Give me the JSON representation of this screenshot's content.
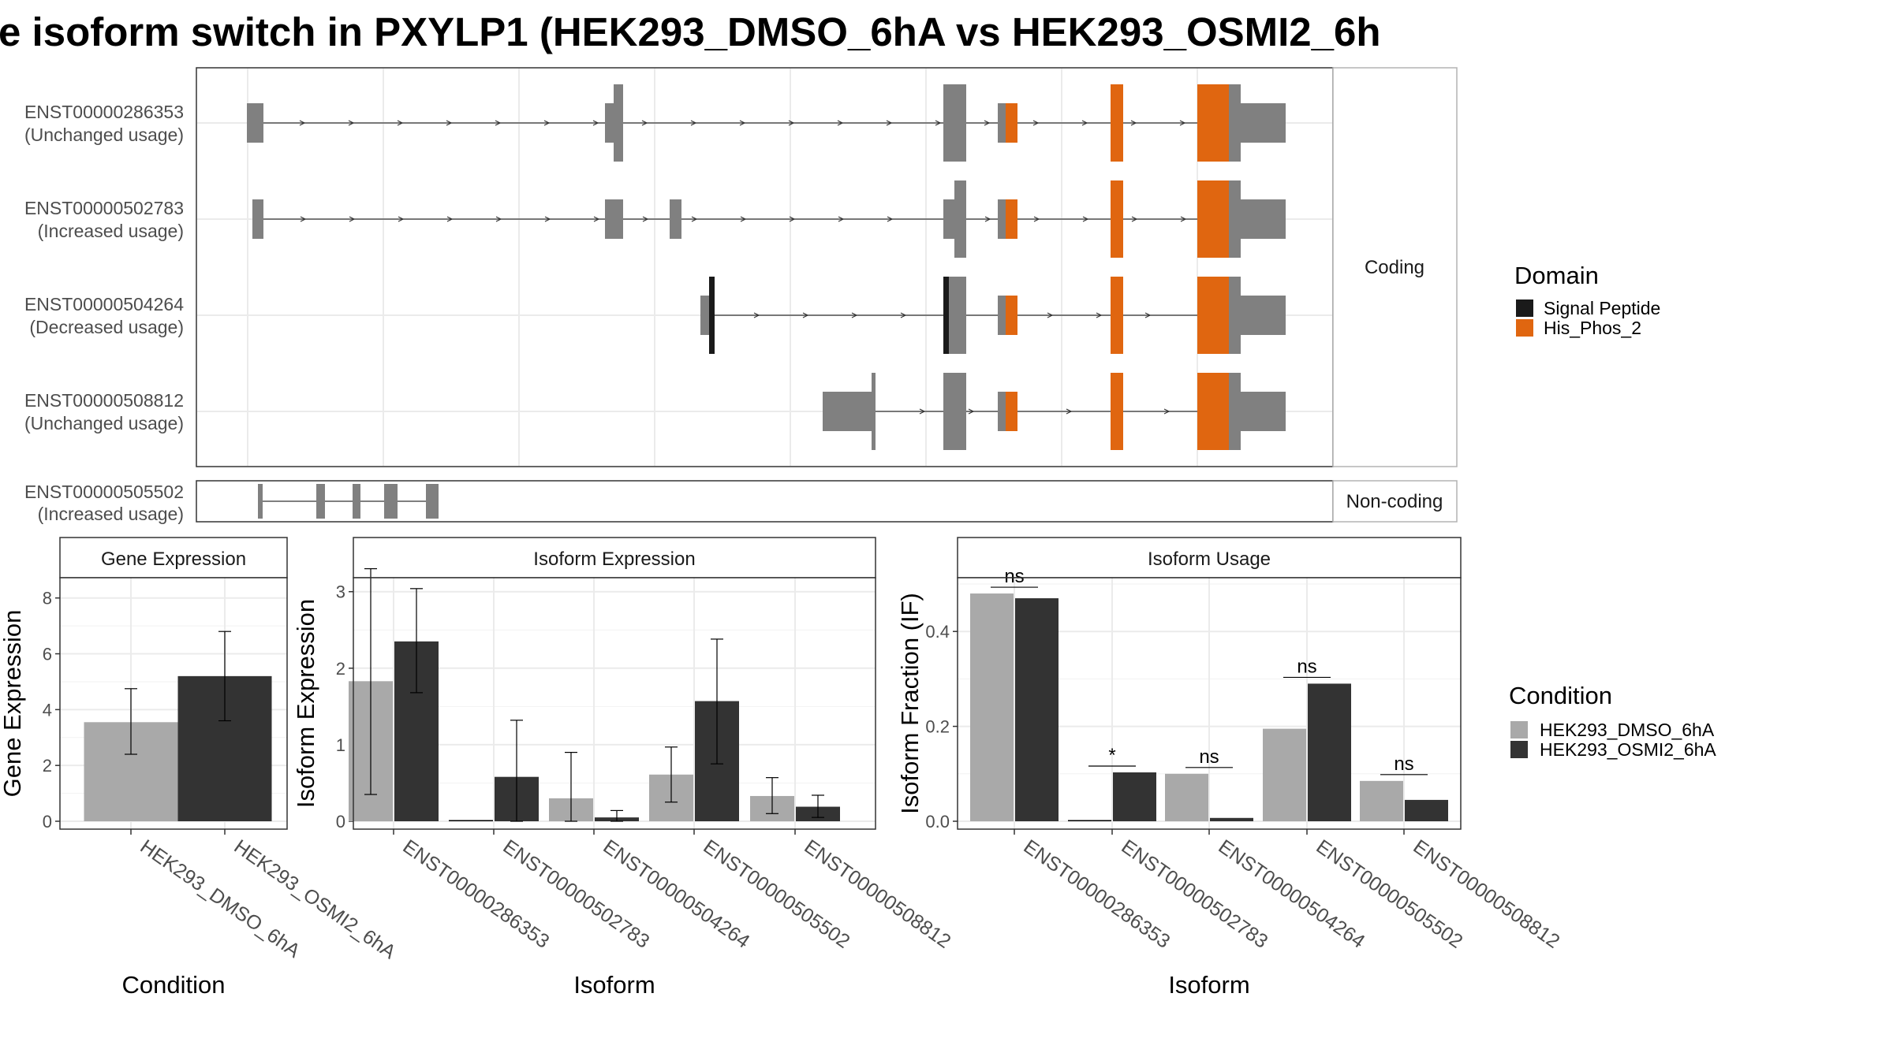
{
  "title": "e isoform switch in PXYLP1 (HEK293_DMSO_6hA vs HEK293_OSMI2_6h",
  "colors": {
    "exon": "#808080",
    "signal_peptide": "#1a1a1a",
    "his_phos": "#e06610",
    "dmso": "#a9a9a9",
    "osmi2": "#333333"
  },
  "structure": {
    "coding_label": "Coding",
    "noncoding_label": "Non-coding",
    "transcripts": [
      {
        "id": "ENST00000286353",
        "usage": "(Unchanged usage)",
        "group": "coding"
      },
      {
        "id": "ENST00000502783",
        "usage": "(Increased usage)",
        "group": "coding"
      },
      {
        "id": "ENST00000504264",
        "usage": "(Decreased usage)",
        "group": "coding"
      },
      {
        "id": "ENST00000508812",
        "usage": "(Unchanged usage)",
        "group": "coding"
      },
      {
        "id": "ENST00000505502",
        "usage": "(Increased usage)",
        "group": "noncoding"
      }
    ]
  },
  "legend_domain": {
    "title": "Domain",
    "items": [
      {
        "label": "Signal Peptide",
        "color": "#1a1a1a"
      },
      {
        "label": "His_Phos_2",
        "color": "#e06610"
      }
    ]
  },
  "legend_condition": {
    "title": "Condition",
    "items": [
      {
        "label": "HEK293_DMSO_6hA",
        "color": "#a9a9a9"
      },
      {
        "label": "HEK293_OSMI2_6hA",
        "color": "#333333"
      }
    ]
  },
  "chart_data": [
    {
      "type": "bar",
      "title": "Gene Expression",
      "xlabel": "Condition",
      "ylabel": "Gene Expression",
      "ylim": [
        0,
        8.5
      ],
      "yticks": [
        "0",
        "2",
        "4",
        "6",
        "8"
      ],
      "categories": [
        "HEK293_DMSO_6hA",
        "HEK293_OSMI2_6hA"
      ],
      "values": [
        3.55,
        5.2
      ],
      "error_low": [
        2.4,
        3.6
      ],
      "error_high": [
        4.75,
        6.8
      ]
    },
    {
      "type": "bar",
      "title": "Isoform Expression",
      "xlabel": "Isoform",
      "ylabel": "Isoform Expression",
      "ylim": [
        0,
        3.1
      ],
      "yticks": [
        "0",
        "1",
        "2",
        "3"
      ],
      "categories": [
        "ENST00000286353",
        "ENST00000502783",
        "ENST00000504264",
        "ENST00000505502",
        "ENST00000508812"
      ],
      "series": [
        {
          "name": "HEK293_DMSO_6hA",
          "values": [
            1.83,
            0.0,
            0.3,
            0.61,
            0.33
          ],
          "error_low": [
            0.35,
            0.0,
            0.0,
            0.25,
            0.1
          ],
          "error_high": [
            3.3,
            0.0,
            0.9,
            0.97,
            0.57
          ]
        },
        {
          "name": "HEK293_OSMI2_6hA",
          "values": [
            2.35,
            0.58,
            0.05,
            1.57,
            0.19
          ],
          "error_low": [
            1.68,
            0.0,
            0.0,
            0.75,
            0.05
          ],
          "error_high": [
            3.04,
            1.32,
            0.14,
            2.38,
            0.34
          ]
        }
      ]
    },
    {
      "type": "bar",
      "title": "Isoform Usage",
      "xlabel": "Isoform",
      "ylabel": "Isoform Fraction (IF)",
      "ylim": [
        0,
        0.5
      ],
      "yticks": [
        "0.0",
        "0.2",
        "0.4"
      ],
      "categories": [
        "ENST00000286353",
        "ENST00000502783",
        "ENST00000504264",
        "ENST00000505502",
        "ENST00000508812"
      ],
      "series": [
        {
          "name": "HEK293_DMSO_6hA",
          "values": [
            0.48,
            0.0,
            0.1,
            0.195,
            0.085
          ]
        },
        {
          "name": "HEK293_OSMI2_6hA",
          "values": [
            0.47,
            0.103,
            0.007,
            0.29,
            0.045
          ]
        }
      ],
      "significance": [
        "ns",
        "*",
        "ns",
        "ns",
        "ns"
      ]
    }
  ]
}
